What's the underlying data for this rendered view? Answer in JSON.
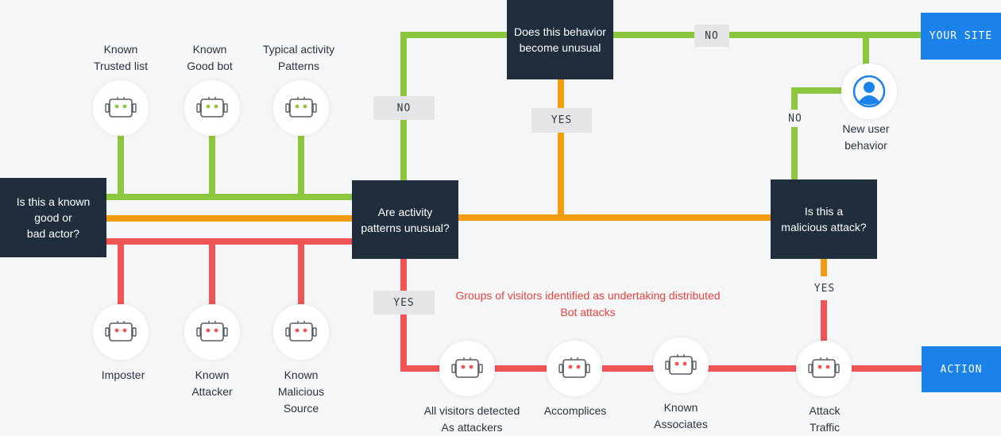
{
  "colors": {
    "good": "#8cc63f",
    "neutral": "#f39c12",
    "bad": "#f05454",
    "node": "#1f2d3d",
    "endpoint": "#1a82e8"
  },
  "nodes": {
    "known_actor": "Is this a known\ngood or\nbad actor?",
    "activity_unusual": "Are activity\npatterns unusual?",
    "behavior_unusual": "Does this behavior\nbecome unusual",
    "malicious_attack": "Is this a\nmalicious attack?"
  },
  "endpoints": {
    "your_site": "YOUR SITE",
    "action": "ACTION"
  },
  "edge_labels": {
    "no_up": "NO",
    "no_top": "NO",
    "yes_mid": "YES",
    "no_user": "NO",
    "yes_down": "YES",
    "yes_attack": "YES"
  },
  "good_bots": [
    {
      "label": "Known\nTrusted list",
      "icon": "robot-icon"
    },
    {
      "label": "Known\nGood bot",
      "icon": "robot-icon"
    },
    {
      "label": "Typical activity\nPatterns",
      "icon": "robot-icon"
    }
  ],
  "bad_bots": [
    {
      "label": "Imposter",
      "icon": "robot-icon"
    },
    {
      "label": "Known\nAttacker",
      "icon": "robot-icon"
    },
    {
      "label": "Known\nMalicious\nSource",
      "icon": "robot-icon"
    }
  ],
  "attack_chain": [
    {
      "label": "All visitors detected\nAs attackers",
      "icon": "robot-icon"
    },
    {
      "label": "Accomplices",
      "icon": "robot-icon"
    },
    {
      "label": "Known\nAssociates",
      "icon": "robot-icon"
    },
    {
      "label": "Attack\nTraffic",
      "icon": "robot-icon"
    }
  ],
  "new_user": {
    "label": "New user\nbehavior",
    "icon": "user-icon"
  },
  "distributed_note": "Groups of visitors identified as undertaking distributed\nBot attacks"
}
